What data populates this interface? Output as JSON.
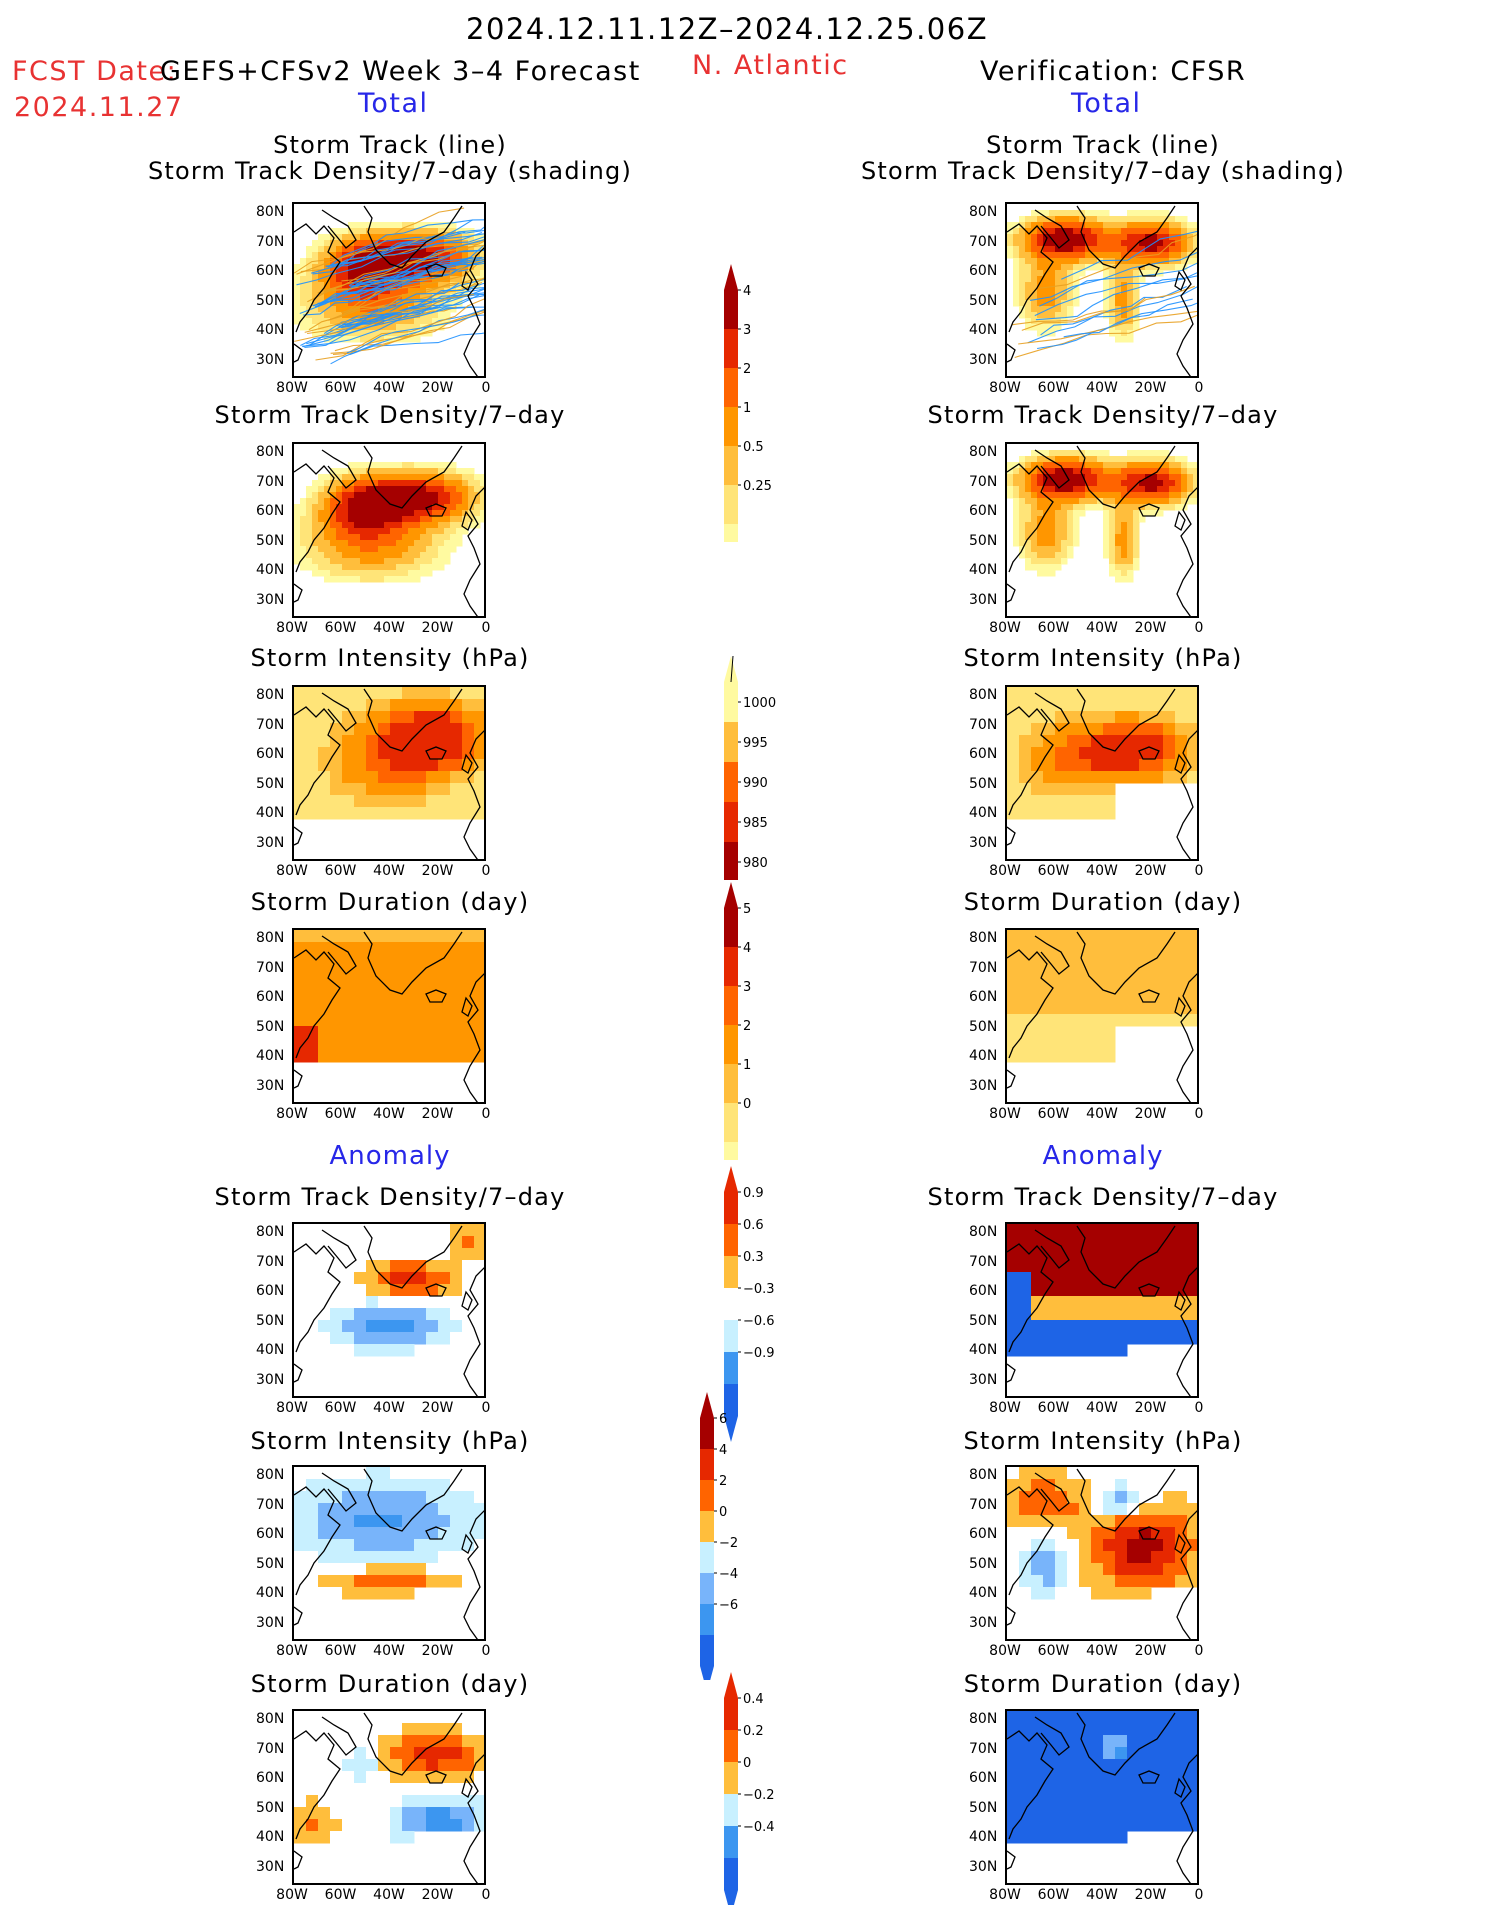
{
  "header": {
    "date_range": "2024.12.11.12Z–2024.12.25.06Z",
    "fcst_label": "FCST Date:",
    "fcst_date": "2024.11.27",
    "model": "GEFS+CFSv2 Week 3–4 Forecast",
    "region": "N. Atlantic",
    "verification": "Verification: CFSR"
  },
  "sections": {
    "total": "Total",
    "anomaly": "Anomaly"
  },
  "panel_titles": {
    "track_line": "Storm Track (line)",
    "track_shading": "Storm Track Density/7–day (shading)",
    "density": "Storm Track Density/7–day",
    "intensity": "Storm Intensity (hPa)",
    "duration": "Storm Duration (day)"
  },
  "axes": {
    "lat_labels": [
      "80N",
      "70N",
      "60N",
      "50N",
      "40N",
      "30N"
    ],
    "lon_labels": [
      "80W",
      "60W",
      "40W",
      "20W",
      "0"
    ]
  },
  "colorbars": {
    "density_total": [
      "4",
      "3",
      "2",
      "1",
      "0.5",
      "0.25"
    ],
    "intensity_total": [
      "1000",
      "995",
      "990",
      "985",
      "980"
    ],
    "duration_total": [
      "5",
      "4",
      "3",
      "2",
      "1",
      "0"
    ],
    "density_anom": [
      "0.9",
      "0.6",
      "0.3",
      "−0.3",
      "−0.6",
      "−0.9"
    ],
    "intensity_anom": [
      "6",
      "4",
      "2",
      "0",
      "−2",
      "−4",
      "−6"
    ],
    "duration_anom": [
      "0.4",
      "0.2",
      "0",
      "−0.2",
      "−0.4"
    ]
  },
  "colors": {
    "seq": [
      "#fffaa0",
      "#ffe478",
      "#ffbe3c",
      "#ff9600",
      "#ff6400",
      "#e62800",
      "#a50000"
    ],
    "div": [
      "#1e64e6",
      "#3c96f0",
      "#78b4fa",
      "#c8f0ff",
      "#ffffff",
      "#ffe478",
      "#ffbe3c",
      "#ff9600",
      "#ff6400",
      "#e62800",
      "#a50000"
    ],
    "track_lines": [
      "#1e90ff",
      "#e8a020"
    ]
  }
}
